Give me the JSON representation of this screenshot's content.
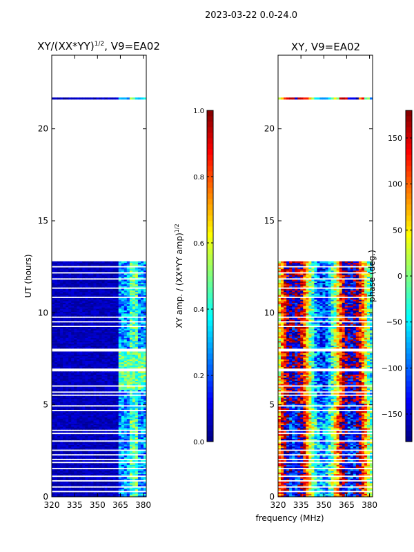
{
  "figure_title": "2023-03-22 0.0-24.0",
  "shared_xlabel": "frequency (MHz)",
  "colormap": [
    "#00007f",
    "#0000ff",
    "#007fff",
    "#00ffff",
    "#7fff7f",
    "#ffff00",
    "#ff7f00",
    "#ff0000",
    "#7f0000"
  ],
  "chart_data": [
    {
      "type": "heatmap",
      "title_main": "XY/(XX*YY)",
      "title_exp": "1/2",
      "title_tail": ", V9=EA02",
      "xlabel": "",
      "ylabel": "UT (hours)",
      "xlim": [
        320,
        382
      ],
      "ylim": [
        0,
        24
      ],
      "xticks": [
        320,
        335,
        350,
        365,
        380
      ],
      "yticks": [
        0,
        5,
        10,
        15,
        20
      ],
      "data_time_ranges_hours": [
        [
          0,
          12.8
        ],
        [
          21.6,
          21.7
        ]
      ],
      "colorbar": {
        "label_main": "XY amp. / (XX*YY amp)",
        "label_exp": "1/2",
        "range": [
          0.0,
          1.0
        ],
        "ticks": [
          "0.0",
          "0.2",
          "0.4",
          "0.6",
          "0.8",
          "1.0"
        ]
      }
    },
    {
      "type": "heatmap",
      "title_main": "XY, V9=EA02",
      "xlabel": "frequency (MHz)",
      "ylabel": "",
      "xlim": [
        320,
        382
      ],
      "ylim": [
        0,
        24
      ],
      "xticks": [
        320,
        335,
        350,
        365,
        380
      ],
      "yticks": [
        0,
        5,
        10,
        15,
        20
      ],
      "data_time_ranges_hours": [
        [
          0,
          12.8
        ],
        [
          21.6,
          21.7
        ]
      ],
      "colorbar": {
        "label_main": "phase (deg.)",
        "range": [
          -180,
          180
        ],
        "ticks": [
          "-150",
          "-100",
          "-50",
          "0",
          "50",
          "100",
          "150"
        ]
      }
    }
  ]
}
